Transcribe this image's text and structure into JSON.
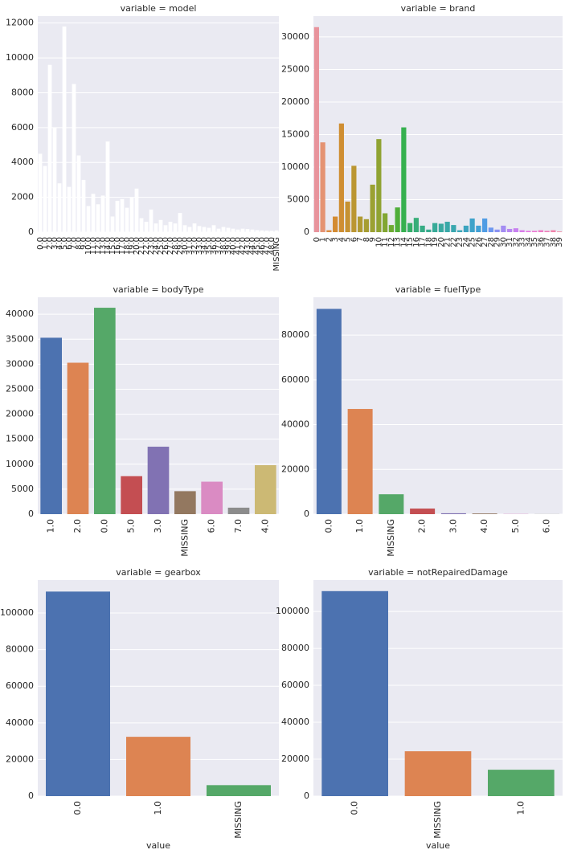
{
  "chart_data": [
    {
      "type": "bar",
      "title": "variable = model",
      "categories": [
        "0.0",
        "1.0",
        "2.0",
        "3.0",
        "4.0",
        "5.0",
        "6.0",
        "7.0",
        "8.0",
        "9.0",
        "10.0",
        "11.0",
        "12.0",
        "13.0",
        "14.0",
        "15.0",
        "16.0",
        "17.0",
        "18.0",
        "19.0",
        "20.0",
        "21.0",
        "22.0",
        "23.0",
        "24.0",
        "25.0",
        "26.0",
        "27.0",
        "28.0",
        "29.0",
        "30.0",
        "31.0",
        "32.0",
        "33.0",
        "34.0",
        "35.0",
        "36.0",
        "37.0",
        "38.0",
        "39.0",
        "40.0",
        "41.0",
        "42.0",
        "43.0",
        "44.0",
        "45.0",
        "46.0",
        "47.0",
        "48.0",
        "MISSING"
      ],
      "values": [
        4500,
        3800,
        9600,
        6000,
        2800,
        11800,
        2600,
        8500,
        4400,
        3000,
        1500,
        2200,
        1600,
        2100,
        5200,
        900,
        1800,
        1900,
        1400,
        2000,
        2500,
        800,
        600,
        1300,
        500,
        700,
        400,
        600,
        500,
        1100,
        400,
        300,
        500,
        350,
        300,
        250,
        400,
        200,
        300,
        250,
        200,
        150,
        200,
        180,
        150,
        120,
        100,
        90,
        80,
        100
      ],
      "colors": [
        "#ffffff"
      ],
      "ylim": [
        0,
        12400
      ],
      "yticks": [
        0,
        2000,
        4000,
        6000,
        8000,
        10000,
        12000
      ]
    },
    {
      "type": "bar",
      "title": "variable = brand",
      "categories": [
        "0",
        "1",
        "2",
        "3",
        "4",
        "5",
        "6",
        "7",
        "8",
        "9",
        "10",
        "11",
        "12",
        "13",
        "14",
        "15",
        "16",
        "17",
        "18",
        "19",
        "20",
        "21",
        "22",
        "23",
        "24",
        "25",
        "26",
        "27",
        "28",
        "29",
        "30",
        "31",
        "32",
        "33",
        "34",
        "35",
        "36",
        "37",
        "38",
        "39"
      ],
      "values": [
        31500,
        13800,
        300,
        2400,
        16700,
        4700,
        10200,
        2400,
        2000,
        7300,
        14300,
        2900,
        1100,
        3800,
        16100,
        1400,
        2200,
        1000,
        400,
        1400,
        1300,
        1600,
        1100,
        300,
        1000,
        2100,
        1000,
        2100,
        700,
        400,
        1000,
        500,
        600,
        300,
        200,
        200,
        300,
        200,
        300,
        100
      ],
      "colors": [
        "#e8939c",
        "#e59372",
        "#dd8a3c",
        "#d38b32",
        "#cf8e32",
        "#c69232",
        "#bb9632",
        "#b09a32",
        "#a69d32",
        "#9ba132",
        "#90a332",
        "#82a632",
        "#6eaa32",
        "#50ae3a",
        "#36b04f",
        "#36ae68",
        "#37ad79",
        "#37ac85",
        "#38ab8f",
        "#38aa98",
        "#39a9a0",
        "#39a8a8",
        "#3aa7af",
        "#3ba6b7",
        "#3ca4c0",
        "#3ea2ca",
        "#41a0d6",
        "#509ce4",
        "#6e97ef",
        "#8b92f2",
        "#a38cf2",
        "#b786f1",
        "#c880ef",
        "#d87ae9",
        "#e576e0",
        "#ec78d3",
        "#ee7bc6",
        "#ef7fb8",
        "#f083aa",
        "#f1879e"
      ],
      "ylim": [
        0,
        33200
      ],
      "yticks": [
        0,
        5000,
        10000,
        15000,
        20000,
        25000,
        30000
      ]
    },
    {
      "type": "bar",
      "title": "variable = bodyType",
      "categories": [
        "1.0",
        "2.0",
        "0.0",
        "5.0",
        "3.0",
        "MISSING",
        "6.0",
        "7.0",
        "4.0"
      ],
      "values": [
        35300,
        30300,
        41300,
        7600,
        13500,
        4600,
        6500,
        1300,
        9800
      ],
      "colors": [
        "#4c72b0",
        "#dd8452",
        "#55a868",
        "#c44e52",
        "#8172b3",
        "#937860",
        "#da8bc3",
        "#8c8c8c",
        "#ccb974"
      ],
      "ylim": [
        0,
        43400
      ],
      "yticks": [
        0,
        5000,
        10000,
        15000,
        20000,
        25000,
        30000,
        35000,
        40000
      ]
    },
    {
      "type": "bar",
      "title": "variable = fuelType",
      "categories": [
        "0.0",
        "1.0",
        "MISSING",
        "2.0",
        "3.0",
        "4.0",
        "5.0",
        "6.0"
      ],
      "values": [
        91700,
        47000,
        8900,
        2500,
        400,
        300,
        100,
        50
      ],
      "colors": [
        "#4c72b0",
        "#dd8452",
        "#55a868",
        "#c44e52",
        "#8172b3",
        "#937860",
        "#da8bc3",
        "#8c8c8c"
      ],
      "ylim": [
        0,
        96900
      ],
      "yticks": [
        0,
        20000,
        40000,
        60000,
        80000
      ]
    },
    {
      "type": "bar",
      "title": "variable = gearbox",
      "xlabel": "value",
      "categories": [
        "0.0",
        "1.0",
        "MISSING"
      ],
      "values": [
        111700,
        32400,
        6000
      ],
      "colors": [
        "#4c72b0",
        "#dd8452",
        "#55a868"
      ],
      "ylim": [
        0,
        118000
      ],
      "yticks": [
        0,
        20000,
        40000,
        60000,
        80000,
        100000
      ]
    },
    {
      "type": "bar",
      "title": "variable = notRepairedDamage",
      "xlabel": "value",
      "categories": [
        "0.0",
        "MISSING",
        "1.0"
      ],
      "values": [
        111000,
        24300,
        14300
      ],
      "colors": [
        "#4c72b0",
        "#dd8452",
        "#55a868"
      ],
      "ylim": [
        0,
        117000
      ],
      "yticks": [
        0,
        20000,
        40000,
        60000,
        80000,
        100000
      ]
    }
  ]
}
